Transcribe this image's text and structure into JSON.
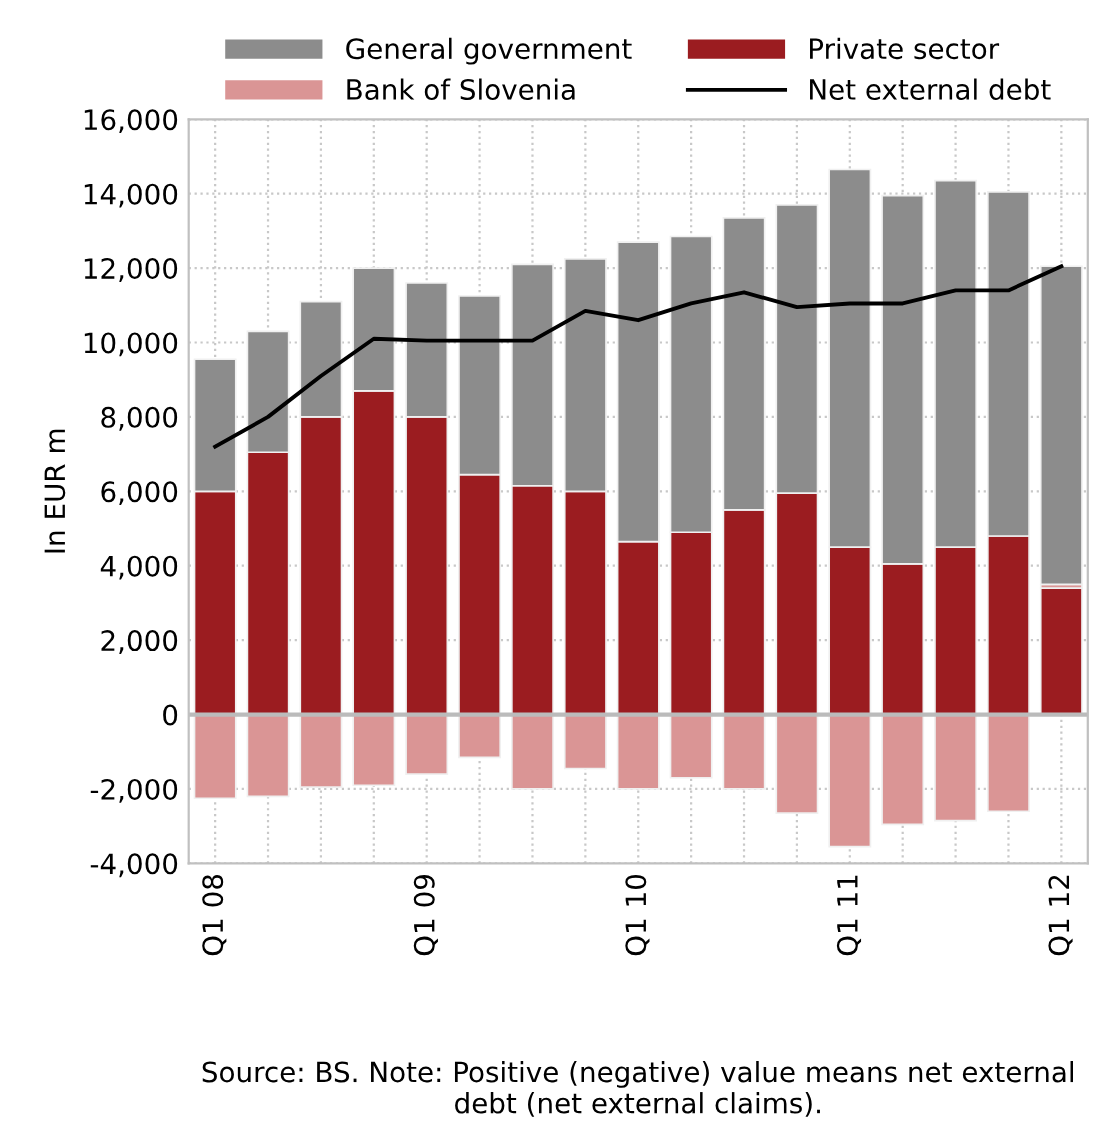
{
  "chart_data": {
    "type": "bar",
    "stacked": true,
    "ylabel": "In EUR m",
    "categories": [
      "Q1 08",
      null,
      null,
      null,
      "Q1 09",
      null,
      null,
      null,
      "Q1 10",
      null,
      null,
      null,
      "Q1 11",
      null,
      null,
      null,
      "Q1 12"
    ],
    "series": [
      {
        "name": "Private sector",
        "color": "#9b1c20",
        "values": [
          6000,
          7050,
          8000,
          8700,
          8000,
          6450,
          6150,
          6000,
          4650,
          4900,
          5500,
          5950,
          4500,
          4050,
          4500,
          4800,
          3400
        ]
      },
      {
        "name": "Bank of Slovenia",
        "color": "#da9595",
        "values": [
          -2250,
          -2200,
          -1950,
          -1900,
          -1600,
          -1150,
          -2000,
          -1450,
          -2000,
          -1700,
          -2000,
          -2650,
          -3550,
          -2950,
          -2850,
          -2600,
          100
        ]
      },
      {
        "name": "General government",
        "color": "#8c8c8c",
        "values": [
          3550,
          3250,
          3100,
          3300,
          3600,
          4800,
          5950,
          6250,
          8050,
          7950,
          7850,
          7750,
          10150,
          9900,
          9850,
          9250,
          8550
        ]
      },
      {
        "name": "Net external debt",
        "type": "line",
        "color": "#000000",
        "marker": "none",
        "values": [
          7200,
          8000,
          9100,
          10100,
          10050,
          10050,
          10050,
          10850,
          10600,
          11050,
          11350,
          10950,
          11050,
          11050,
          11400,
          11400,
          12050
        ]
      }
    ],
    "ylim": [
      -4000,
      16000
    ],
    "yticks": [
      {
        "value": -4000,
        "label": "-4,000"
      },
      {
        "value": -2000,
        "label": "-2,000"
      },
      0,
      {
        "value": 2000,
        "label": "2,000"
      },
      {
        "value": 4000,
        "label": "4,000"
      },
      {
        "value": 6000,
        "label": "6,000"
      },
      {
        "value": 8000,
        "label": "8,000"
      },
      {
        "value": 10000,
        "label": "10,000"
      },
      {
        "value": 12000,
        "label": "12,000"
      },
      {
        "value": 14000,
        "label": "14,000"
      },
      {
        "value": 16000,
        "label": "16,000"
      }
    ],
    "grid": true,
    "legend": "top",
    "annotations": [
      "Source: BS. Note: Positive (negative) value means net external debt (net external claims)."
    ]
  }
}
